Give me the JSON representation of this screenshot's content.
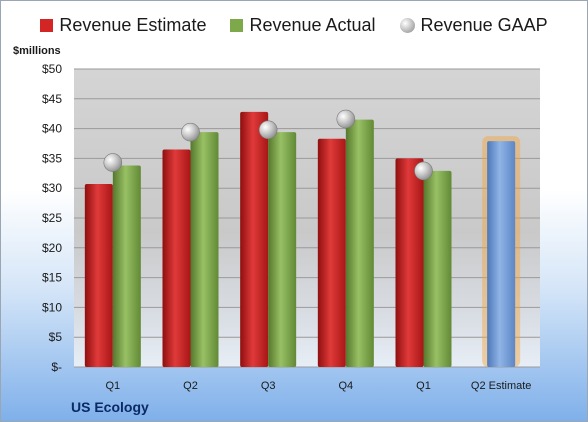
{
  "legend": {
    "estimate": "Revenue Estimate",
    "actual": "Revenue Actual",
    "gaap": "Revenue GAAP"
  },
  "unit_label": "$millions",
  "company": "US Ecology",
  "colors": {
    "estimate": "#d42525",
    "actual": "#7ea94a",
    "gaap": "#b8b8b8",
    "forecast": "#6f9ad6",
    "forecast_glow": "#f5a33c"
  },
  "chart_data": {
    "type": "bar",
    "categories": [
      "Q1",
      "Q2",
      "Q3",
      "Q4",
      "Q1",
      "Q2 Estimate"
    ],
    "series": [
      {
        "name": "Revenue Estimate",
        "values": [
          30.7,
          36.5,
          42.8,
          38.3,
          35.0,
          null
        ]
      },
      {
        "name": "Revenue Actual",
        "values": [
          33.8,
          39.4,
          39.4,
          41.5,
          32.9,
          null
        ]
      },
      {
        "name": "Revenue GAAP",
        "type": "scatter",
        "values": [
          34.3,
          39.4,
          39.8,
          41.6,
          32.9,
          null
        ]
      },
      {
        "name": "",
        "values": [
          null,
          null,
          null,
          null,
          null,
          37.9
        ]
      }
    ],
    "y_ticks": [
      "$-",
      "$5",
      "$10",
      "$15",
      "$20",
      "$25",
      "$30",
      "$35",
      "$40",
      "$45",
      "$50"
    ],
    "ylim": [
      0,
      50
    ],
    "ylabel": "$millions",
    "grid": true,
    "legend_position": "top"
  }
}
